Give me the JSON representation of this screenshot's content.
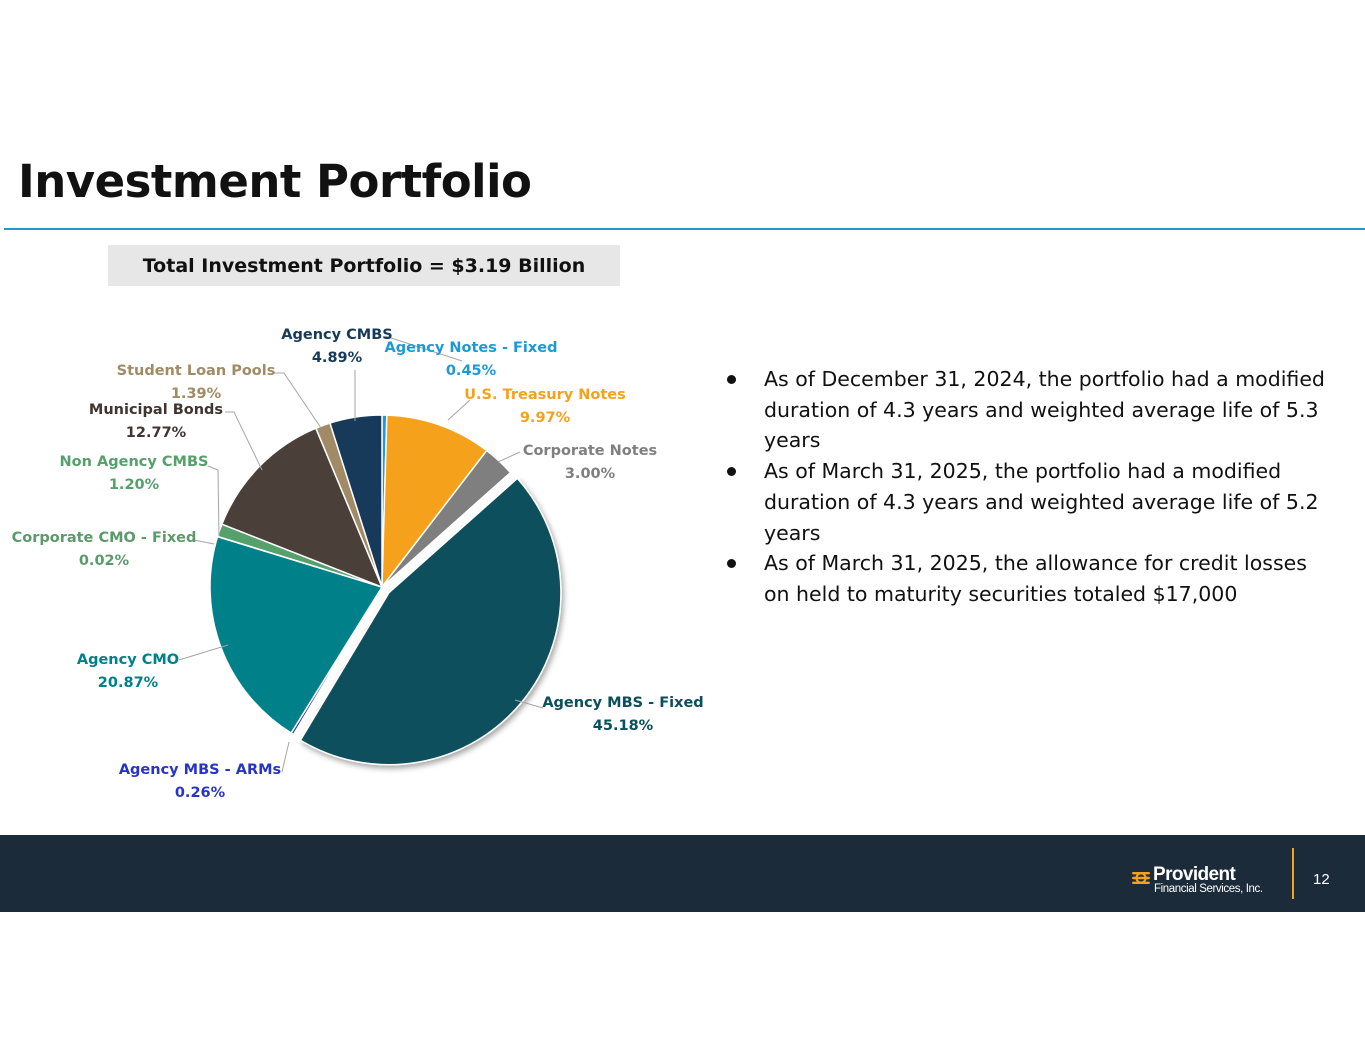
{
  "slide": {
    "title": "Investment Portfolio",
    "total_label": "Total Investment Portfolio = $3.19 Billion",
    "page_number": "12"
  },
  "bullets": [
    "As of December 31, 2024, the portfolio had a modified duration of 4.3 years and weighted average life of 5.3 years",
    "As of March 31, 2025, the portfolio had a modified duration of 4.3 years and weighted average life of 5.2 years",
    "As of March 31, 2025, the allowance for credit losses on held to maturity securities totaled $17,000"
  ],
  "footer": {
    "logo_name": "Provident",
    "logo_sub": "Financial Services, Inc.",
    "accent_color": "#f5a11c",
    "background_color": "#1b2b39"
  },
  "chart_data": {
    "type": "pie",
    "unit": "%",
    "slices": [
      {
        "label": "Agency Notes - Fixed",
        "value": 0.45,
        "display": "0.45%",
        "color": "#1b9ad6",
        "exploded": false
      },
      {
        "label": "U.S. Treasury Notes",
        "value": 9.97,
        "display": "9.97%",
        "color": "#f5a11c",
        "exploded": false
      },
      {
        "label": "Corporate Notes",
        "value": 3.0,
        "display": "3.00%",
        "color": "#7f7f7f",
        "exploded": false
      },
      {
        "label": "Agency MBS - Fixed",
        "value": 45.18,
        "display": "45.18%",
        "color": "#0b4f5c",
        "exploded": true
      },
      {
        "label": "Agency MBS - ARMs",
        "value": 0.26,
        "display": "0.26%",
        "color": "#2834c7",
        "exploded": false
      },
      {
        "label": "Agency CMO",
        "value": 20.87,
        "display": "20.87%",
        "color": "#00818a",
        "exploded": false
      },
      {
        "label": "Corporate CMO - Fixed",
        "value": 0.02,
        "display": "0.02%",
        "color": "#5b9a6a",
        "exploded": false
      },
      {
        "label": "Non Agency CMBS",
        "value": 1.2,
        "display": "1.20%",
        "color": "#55a06b",
        "exploded": false
      },
      {
        "label": "Municipal Bonds",
        "value": 12.77,
        "display": "12.77%",
        "color": "#4a4039",
        "exploded": false
      },
      {
        "label": "Student Loan Pools",
        "value": 1.39,
        "display": "1.39%",
        "color": "#a08b66",
        "exploded": false
      },
      {
        "label": "Agency CMBS",
        "value": 4.89,
        "display": "4.89%",
        "color": "#173a5a",
        "exploded": false
      }
    ],
    "label_colors": {
      "Agency Notes - Fixed": "#1b9ad6",
      "U.S. Treasury Notes": "#f5a11c",
      "Corporate Notes": "#7f7f7f",
      "Agency MBS - Fixed": "#0b4f5c",
      "Agency MBS - ARMs": "#2834c7",
      "Agency CMO": "#00818a",
      "Corporate CMO - Fixed": "#5b9a6a",
      "Non Agency CMBS": "#55a06b",
      "Municipal Bonds": "#403530",
      "Student Loan Pools": "#a08b66",
      "Agency CMBS": "#173a5a"
    }
  }
}
